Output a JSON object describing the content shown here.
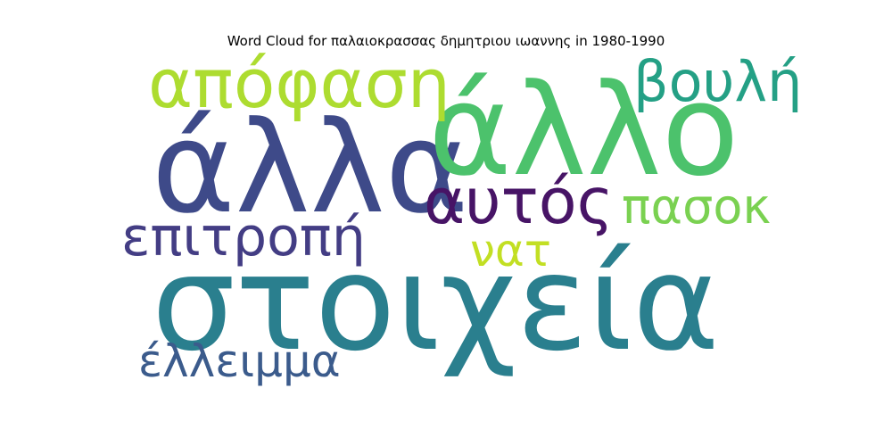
{
  "chart_data": {
    "type": "wordcloud",
    "title": "Word Cloud for παλαιοκρασσας δημητριου ιωαννης in 1980-1990",
    "words": [
      {
        "key": "stoixeia",
        "text": "στοιχεία",
        "color": "#2a7f8e"
      },
      {
        "key": "alla",
        "text": "άλλα",
        "color": "#3e4a89"
      },
      {
        "key": "allo",
        "text": "άλλο",
        "color": "#4cc26c"
      },
      {
        "key": "apofasi",
        "text": "απόφαση",
        "color": "#addc30"
      },
      {
        "key": "vouli",
        "text": "βουλή",
        "color": "#24a085"
      },
      {
        "key": "aftos",
        "text": "αυτός",
        "color": "#471466"
      },
      {
        "key": "pasok",
        "text": "πασοκ",
        "color": "#7ad151"
      },
      {
        "key": "epitropi",
        "text": "επιτροπή",
        "color": "#433d84"
      },
      {
        "key": "nat",
        "text": "νατ",
        "color": "#c2df23"
      },
      {
        "key": "elleimma",
        "text": "έλλειμμα",
        "color": "#3b5b8c"
      }
    ]
  }
}
